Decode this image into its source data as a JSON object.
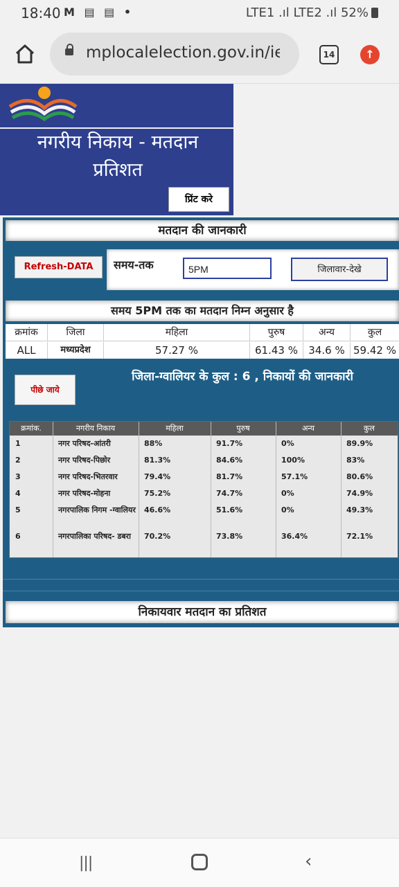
{
  "status_bar": {
    "time": "18:40",
    "left_icons": "M ▤ ▤ •",
    "right_text": "LTE1 .ıl LTE2 .ıl 52%",
    "battery_icon": "battery-icon"
  },
  "browser": {
    "url": "mplocalelection.gov.in/ier",
    "tab_count": "14",
    "home_icon": "home-icon",
    "update_icon": "update-arrow-icon"
  },
  "header": {
    "title_line1": "नगरीय निकाय - मतदान",
    "title_line2": "प्रतिशत",
    "print_button": "प्रिंट करे"
  },
  "section_info": {
    "title": "मतदान की जानकारी",
    "refresh_button": "Refresh-DATA",
    "time_label": "समय-तक",
    "time_value": "5PM",
    "district_button": "जिलावार-देखे"
  },
  "summary": {
    "title": "समय 5PM तक का मतदान निम्न अनुसार है",
    "headers": [
      "क्रमांक",
      "जिला",
      "महिला",
      "पुरुष",
      "अन्य",
      "कुल"
    ],
    "row": [
      "ALL",
      "मध्यप्रदेश",
      "57.27 %",
      "61.43 %",
      "34.6 %",
      "59.42 %"
    ]
  },
  "district": {
    "back_button": "पीछे जाये",
    "title": "जिला-ग्वालियर के कुल : 6 , निकायों की जानकारी",
    "headers": [
      "क्रमांक.",
      "नगरीय निकाय",
      "महिला",
      "पुरुष",
      "अन्य",
      "कुल"
    ],
    "rows": [
      [
        "1",
        "नगर परिषद-आंतरी",
        "88%",
        "91.7%",
        "0%",
        "89.9%"
      ],
      [
        "2",
        "नगर परिषद-पिछोर",
        "81.3%",
        "84.6%",
        "100%",
        "83%"
      ],
      [
        "3",
        "नगर परिषद-भितरवार",
        "79.4%",
        "81.7%",
        "57.1%",
        "80.6%"
      ],
      [
        "4",
        "नगर परिषद-मोहना",
        "75.2%",
        "74.7%",
        "0%",
        "74.9%"
      ],
      [
        "5",
        "नगरपालिक निगम -ग्वालियर",
        "46.6%",
        "51.6%",
        "0%",
        "49.3%"
      ],
      [
        "6",
        "नगरपालिका परिषद- डबरा",
        "70.2%",
        "73.8%",
        "36.4%",
        "72.1%"
      ]
    ]
  },
  "section_body": {
    "title": "निकायवार मतदान का प्रतिशत"
  },
  "nav": {
    "recent_icon": "recent-apps-icon",
    "home_icon": "home-circle-icon",
    "back_icon": "back-icon"
  }
}
